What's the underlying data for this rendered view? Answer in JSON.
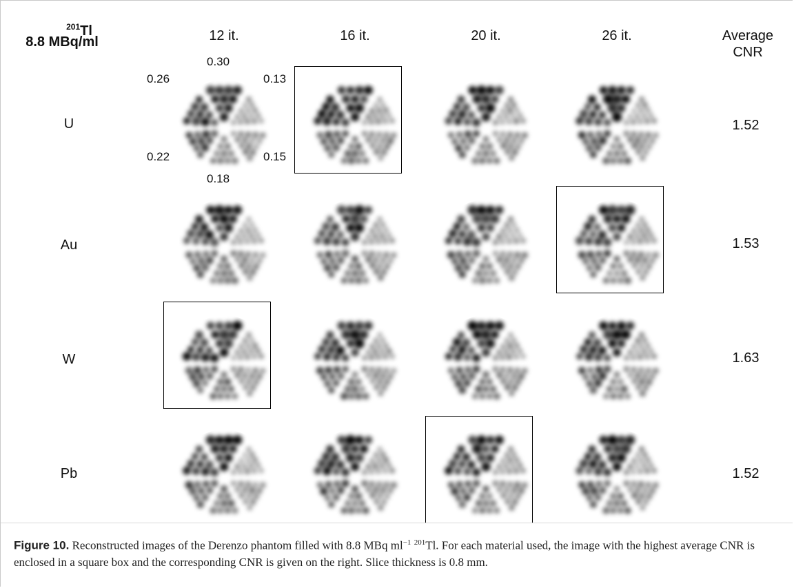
{
  "header": {
    "isotope_mass": "201",
    "isotope_symbol": "Tl",
    "activity": "8.8 MBq/ml",
    "columns": [
      "12 it.",
      "16 it.",
      "20 it.",
      "26 it."
    ],
    "cnr_header": [
      "Average",
      "CNR"
    ]
  },
  "sector_labels": {
    "top": "0.30",
    "upper_left": "0.26",
    "upper_right": "0.13",
    "lower_left": "0.22",
    "lower_right": "0.15",
    "bottom": "0.18"
  },
  "rows": [
    {
      "material": "U",
      "cnr": "1.52",
      "best_column": 1,
      "intensity": 1.0
    },
    {
      "material": "Au",
      "cnr": "1.53",
      "best_column": 3,
      "intensity": 0.95
    },
    {
      "material": "W",
      "cnr": "1.63",
      "best_column": 0,
      "intensity": 1.0
    },
    {
      "material": "Pb",
      "cnr": "1.52",
      "best_column": 2,
      "intensity": 0.97
    }
  ],
  "caption": {
    "label": "Figure 10.",
    "text_before": " Reconstructed images of the Derenzo phantom filled with 8.8 MBq ml",
    "unit_exp": "−1",
    "isotope_mass": "201",
    "text_after": "Tl. For each material used, the image with the highest average CNR is enclosed in a square box and the corresponding CNR is given on the right. Slice thickness is 0.8 mm."
  }
}
